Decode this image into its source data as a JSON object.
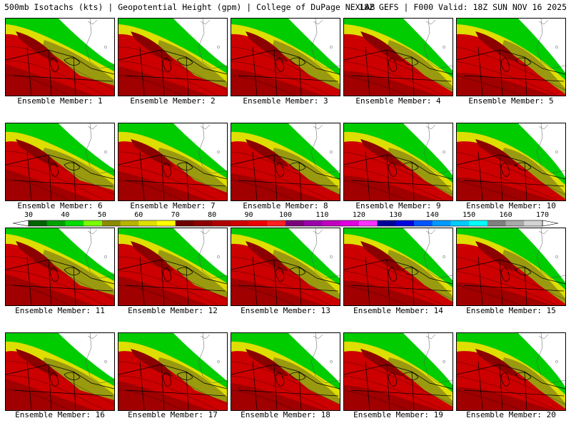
{
  "header": {
    "left": "500mb Isotachs (kts) | Geopotential Height (gpm) | College of DuPage NEXLAB",
    "right": "18Z GEFS | F000 Valid: 18Z SUN NOV 16 2025"
  },
  "members": [
    "Ensemble Member: 1",
    "Ensemble Member: 2",
    "Ensemble Member: 3",
    "Ensemble Member: 4",
    "Ensemble Member: 5",
    "Ensemble Member: 6",
    "Ensemble Member: 7",
    "Ensemble Member: 8",
    "Ensemble Member: 9",
    "Ensemble Member: 10",
    "Ensemble Member: 11",
    "Ensemble Member: 12",
    "Ensemble Member: 13",
    "Ensemble Member: 14",
    "Ensemble Member: 15",
    "Ensemble Member: 16",
    "Ensemble Member: 17",
    "Ensemble Member: 18",
    "Ensemble Member: 19",
    "Ensemble Member: 20"
  ],
  "colorbar": {
    "ticks": [
      "30",
      "40",
      "50",
      "60",
      "70",
      "80",
      "90",
      "100",
      "110",
      "120",
      "130",
      "140",
      "150",
      "160",
      "170"
    ],
    "colors": [
      "#006400",
      "#00a000",
      "#00dd00",
      "#7cfc00",
      "#8b8b00",
      "#b4b400",
      "#e0e000",
      "#ffff00",
      "#6b0000",
      "#8b0000",
      "#b00000",
      "#d00000",
      "#ee0000",
      "#ff2020",
      "#7a007a",
      "#9900aa",
      "#c000c0",
      "#e000e0",
      "#ff33ff",
      "#000099",
      "#0000dd",
      "#0055ff",
      "#0099ff",
      "#00ccff",
      "#00ffff",
      "#808080",
      "#a9a9a9",
      "#d3d3d3"
    ]
  }
}
